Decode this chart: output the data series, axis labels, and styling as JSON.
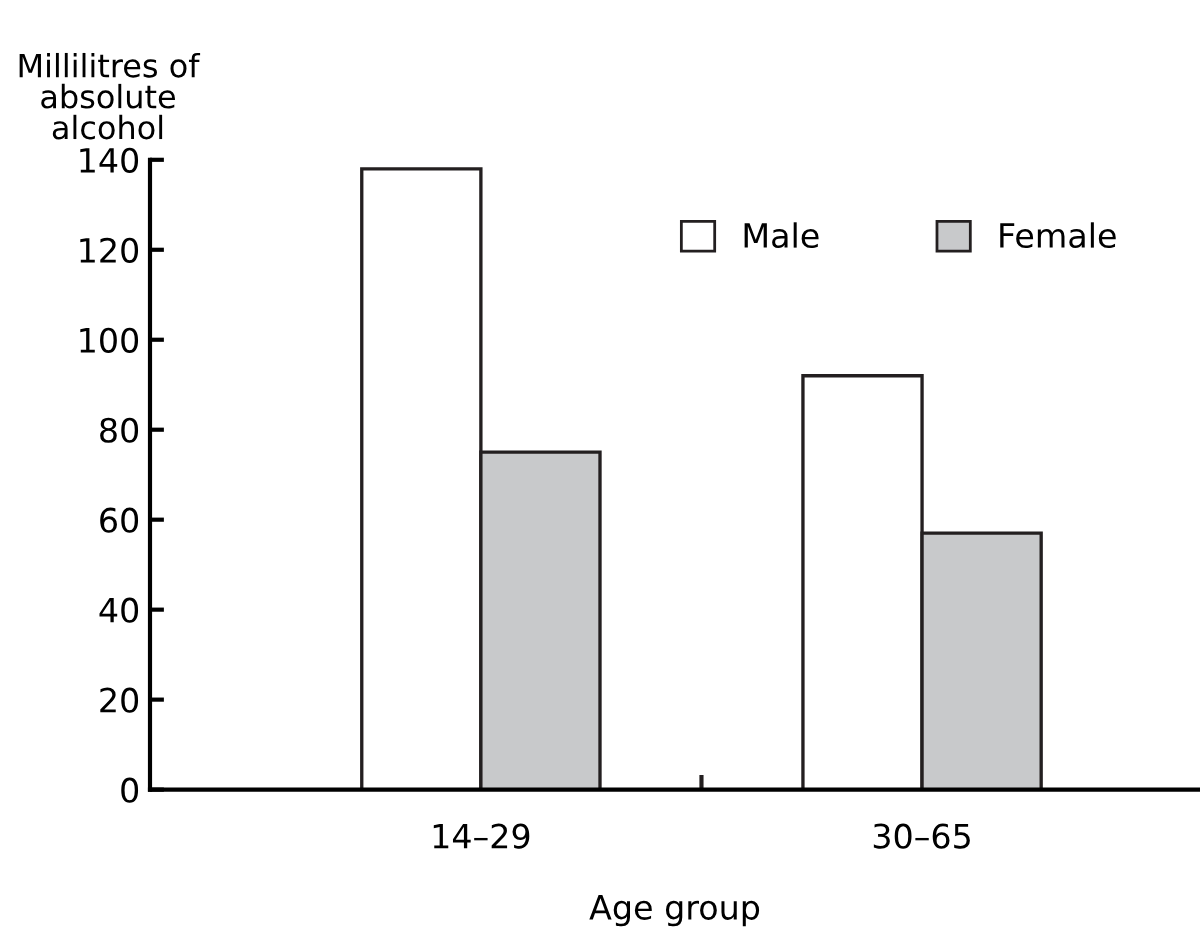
{
  "chart_data": {
    "type": "bar",
    "ylabel": "Millilitres of\nabsolute\nalcohol",
    "xlabel": "Age group",
    "categories": [
      "14–29",
      "30–65"
    ],
    "series": [
      {
        "name": "Male",
        "color": "#ffffff",
        "values": [
          138,
          92
        ]
      },
      {
        "name": "Female",
        "color": "#c8c9cb",
        "values": [
          75,
          57
        ]
      }
    ],
    "ylim": [
      0,
      140
    ],
    "yticks": [
      0,
      20,
      40,
      60,
      80,
      100,
      120,
      140
    ],
    "grid": false,
    "legend": "top right"
  }
}
